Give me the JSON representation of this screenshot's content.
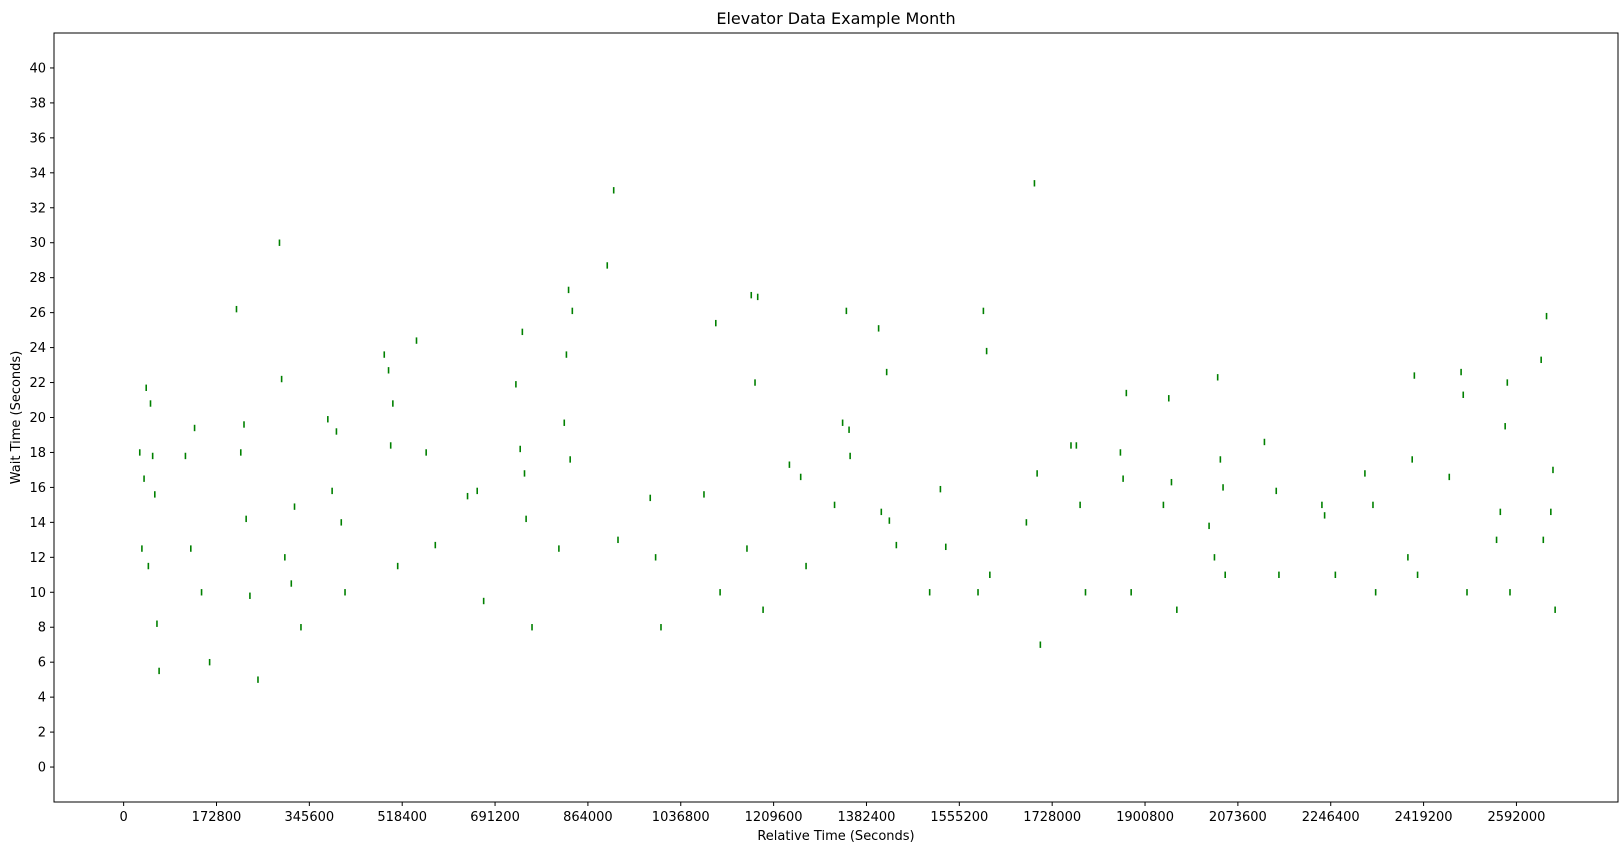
{
  "chart_data": {
    "type": "scatter",
    "title": "Elevator Data Example Month",
    "xlabel": "Relative Time (Seconds)",
    "ylabel": "Wait Time (Seconds)",
    "xlim": [
      -129600,
      2781000
    ],
    "ylim": [
      -2,
      42
    ],
    "xticks": [
      0,
      172800,
      345600,
      518400,
      691200,
      864000,
      1036800,
      1209600,
      1382400,
      1555200,
      1728000,
      1900800,
      2073600,
      2246400,
      2419200,
      2592000
    ],
    "yticks": [
      0,
      2,
      4,
      6,
      8,
      10,
      12,
      14,
      16,
      18,
      20,
      22,
      24,
      26,
      28,
      30,
      32,
      34,
      36,
      38,
      40
    ],
    "marker": "|",
    "grid": false,
    "legend": "none",
    "colors": {
      "marker": "#008000",
      "axes": "#000000",
      "background": "#ffffff"
    },
    "series": [
      {
        "points": [
          [
            30000,
            18.0
          ],
          [
            34000,
            12.5
          ],
          [
            38000,
            16.5
          ],
          [
            42000,
            21.7
          ],
          [
            46000,
            11.5
          ],
          [
            50000,
            20.8
          ],
          [
            54000,
            17.8
          ],
          [
            58000,
            15.6
          ],
          [
            62000,
            8.2
          ],
          [
            66000,
            5.5
          ],
          [
            115000,
            17.8
          ],
          [
            125000,
            12.5
          ],
          [
            132000,
            19.4
          ],
          [
            145000,
            10.0
          ],
          [
            160000,
            6.0
          ],
          [
            210000,
            26.2
          ],
          [
            218000,
            18.0
          ],
          [
            224000,
            19.6
          ],
          [
            228000,
            14.2
          ],
          [
            235000,
            9.8
          ],
          [
            250000,
            5.0
          ],
          [
            290000,
            30.0
          ],
          [
            294000,
            22.2
          ],
          [
            300000,
            12.0
          ],
          [
            312000,
            10.5
          ],
          [
            318000,
            14.9
          ],
          [
            330000,
            8.0
          ],
          [
            380000,
            19.9
          ],
          [
            388000,
            15.8
          ],
          [
            396000,
            19.2
          ],
          [
            405000,
            14.0
          ],
          [
            412000,
            10.0
          ],
          [
            485000,
            23.6
          ],
          [
            493000,
            22.7
          ],
          [
            497000,
            18.4
          ],
          [
            501000,
            20.8
          ],
          [
            510000,
            11.5
          ],
          [
            545000,
            24.4
          ],
          [
            563000,
            18.0
          ],
          [
            580000,
            12.7
          ],
          [
            640000,
            15.5
          ],
          [
            658000,
            15.8
          ],
          [
            670000,
            9.5
          ],
          [
            730000,
            21.9
          ],
          [
            738000,
            18.2
          ],
          [
            742000,
            24.9
          ],
          [
            746000,
            16.8
          ],
          [
            749000,
            14.2
          ],
          [
            760000,
            8.0
          ],
          [
            810000,
            12.5
          ],
          [
            820000,
            19.7
          ],
          [
            824000,
            23.6
          ],
          [
            828000,
            27.3
          ],
          [
            831000,
            17.6
          ],
          [
            835000,
            26.1
          ],
          [
            900000,
            28.7
          ],
          [
            912000,
            33.0
          ],
          [
            920000,
            13.0
          ],
          [
            980000,
            15.4
          ],
          [
            990000,
            12.0
          ],
          [
            1000000,
            8.0
          ],
          [
            1080000,
            15.6
          ],
          [
            1102000,
            25.4
          ],
          [
            1110000,
            10.0
          ],
          [
            1160000,
            12.5
          ],
          [
            1168000,
            27.0
          ],
          [
            1175000,
            22.0
          ],
          [
            1180000,
            26.9
          ],
          [
            1190000,
            9.0
          ],
          [
            1239000,
            17.3
          ],
          [
            1260000,
            16.6
          ],
          [
            1270000,
            11.5
          ],
          [
            1323000,
            15.0
          ],
          [
            1338000,
            19.7
          ],
          [
            1345000,
            26.1
          ],
          [
            1350000,
            19.3
          ],
          [
            1352000,
            17.8
          ],
          [
            1405000,
            25.1
          ],
          [
            1410000,
            14.6
          ],
          [
            1420000,
            22.6
          ],
          [
            1425000,
            14.1
          ],
          [
            1438000,
            12.7
          ],
          [
            1530000,
            12.6
          ],
          [
            1520000,
            15.9
          ],
          [
            1500000,
            10.0
          ],
          [
            1590000,
            10.0
          ],
          [
            1600000,
            26.1
          ],
          [
            1606000,
            23.8
          ],
          [
            1612000,
            11.0
          ],
          [
            1680000,
            14.0
          ],
          [
            1695000,
            33.4
          ],
          [
            1700000,
            16.8
          ],
          [
            1706000,
            7.0
          ],
          [
            1763000,
            18.4
          ],
          [
            1773000,
            18.4
          ],
          [
            1780000,
            15.0
          ],
          [
            1790000,
            10.0
          ],
          [
            1855000,
            18.0
          ],
          [
            1860000,
            16.5
          ],
          [
            1866000,
            21.4
          ],
          [
            1875000,
            10.0
          ],
          [
            1935000,
            15.0
          ],
          [
            1945000,
            21.1
          ],
          [
            1950000,
            16.3
          ],
          [
            1960000,
            9.0
          ],
          [
            2020000,
            13.8
          ],
          [
            2030000,
            12.0
          ],
          [
            2036000,
            22.3
          ],
          [
            2041000,
            17.6
          ],
          [
            2046000,
            16.0
          ],
          [
            2050000,
            11.0
          ],
          [
            2123000,
            18.6
          ],
          [
            2145000,
            15.8
          ],
          [
            2150000,
            11.0
          ],
          [
            2230000,
            15.0
          ],
          [
            2235000,
            14.4
          ],
          [
            2255000,
            11.0
          ],
          [
            2310000,
            16.8
          ],
          [
            2325000,
            15.0
          ],
          [
            2330000,
            10.0
          ],
          [
            2390000,
            12.0
          ],
          [
            2398000,
            17.6
          ],
          [
            2402000,
            22.4
          ],
          [
            2408000,
            11.0
          ],
          [
            2467000,
            16.6
          ],
          [
            2489000,
            22.6
          ],
          [
            2493000,
            21.3
          ],
          [
            2500000,
            10.0
          ],
          [
            2555000,
            13.0
          ],
          [
            2562000,
            14.6
          ],
          [
            2571000,
            19.5
          ],
          [
            2575000,
            22.0
          ],
          [
            2580000,
            10.0
          ],
          [
            2638000,
            23.3
          ],
          [
            2642000,
            13.0
          ],
          [
            2648000,
            25.8
          ],
          [
            2656000,
            14.6
          ],
          [
            2660000,
            17.0
          ],
          [
            2664000,
            9.0
          ]
        ]
      }
    ]
  }
}
